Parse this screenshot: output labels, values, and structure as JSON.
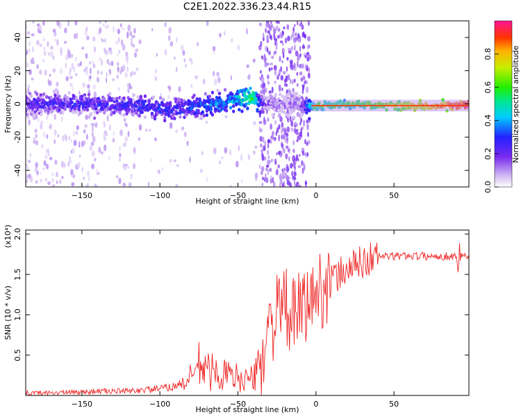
{
  "title": "C2E1.2022.336.23.44.R15",
  "chart_data": [
    {
      "type": "heatmap",
      "xlabel": "Height of straight line (km)",
      "ylabel": "Frequency (Hz)",
      "xlim": [
        -186,
        98
      ],
      "ylim": [
        -50,
        50
      ],
      "x_ticks": [
        -150,
        -100,
        -50,
        0,
        50
      ],
      "y_ticks": [
        -40,
        -20,
        0,
        20,
        40
      ],
      "colorbar": {
        "label": "Normalized spectral amplitude",
        "range": [
          0,
          1
        ],
        "ticks": [
          "0.0",
          "0.2",
          "0.4",
          "0.6",
          "0.8"
        ]
      },
      "ridge": {
        "x": [
          -186,
          -150,
          -120,
          -100,
          -80,
          -60,
          -50,
          -40,
          -36,
          -32,
          -20,
          -10,
          -5,
          0,
          10,
          25,
          50,
          75,
          98
        ],
        "center_hz": [
          0,
          0,
          -1,
          -3,
          -2,
          0,
          3,
          4,
          0,
          0,
          0,
          0,
          -2,
          -1,
          -1,
          0,
          -1,
          -1,
          -1
        ],
        "amplitude": [
          0.22,
          0.25,
          0.25,
          0.28,
          0.3,
          0.35,
          0.42,
          0.55,
          0.3,
          0.12,
          0.12,
          0.12,
          0.35,
          0.6,
          0.55,
          0.6,
          0.72,
          0.85,
          0.95
        ]
      }
    },
    {
      "type": "line",
      "xlabel": "Height of straight line (km)",
      "ylabel": "SNR (10 * v/v)",
      "multiplier": "(x10⁴)",
      "xlim": [
        -186,
        98
      ],
      "ylim": [
        0,
        2.05
      ],
      "x_ticks": [
        -150,
        -100,
        -50,
        0,
        50
      ],
      "y_ticks": [
        "0.5",
        "1.0",
        "1.5",
        "2.0"
      ],
      "line_color": "#ee2222",
      "series": [
        {
          "x": [
            -186,
            -170,
            -150,
            -140,
            -120,
            -100,
            -90,
            -80,
            -75,
            -70,
            -60,
            -50,
            -40,
            -35,
            -30,
            -25,
            -20,
            -15,
            -10,
            -5,
            0,
            5,
            10,
            20,
            30,
            40,
            50,
            60,
            70,
            80,
            90,
            95,
            98
          ],
          "values": [
            0.03,
            0.03,
            0.04,
            0.05,
            0.05,
            0.08,
            0.11,
            0.2,
            0.35,
            0.28,
            0.24,
            0.2,
            0.18,
            0.4,
            0.8,
            0.95,
            1.05,
            0.9,
            1.0,
            1.1,
            1.2,
            1.3,
            1.4,
            1.55,
            1.63,
            1.72,
            1.72,
            1.73,
            1.72,
            1.72,
            1.72,
            1.75,
            1.7
          ]
        }
      ]
    }
  ]
}
